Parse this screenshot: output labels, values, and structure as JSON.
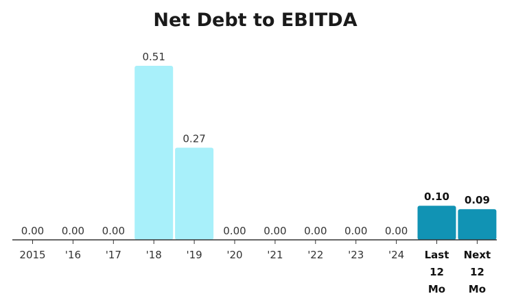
{
  "chart_data": {
    "type": "bar",
    "title": "Net Debt to EBITDA",
    "categories": [
      "2015",
      "'16",
      "'17",
      "'18",
      "'19",
      "'20",
      "'21",
      "'22",
      "'23",
      "'24",
      "Last 12 Mo",
      "Next 12 Mo"
    ],
    "category_lines": [
      [
        "2015"
      ],
      [
        "'16"
      ],
      [
        "'17"
      ],
      [
        "'18"
      ],
      [
        "'19"
      ],
      [
        "'20"
      ],
      [
        "'21"
      ],
      [
        "'22"
      ],
      [
        "'23"
      ],
      [
        "'24"
      ],
      [
        "Last",
        "12",
        "Mo"
      ],
      [
        "Next",
        "12",
        "Mo"
      ]
    ],
    "values": [
      0.0,
      0.0,
      0.0,
      0.51,
      0.27,
      0.0,
      0.0,
      0.0,
      0.0,
      0.0,
      0.1,
      0.09
    ],
    "value_labels": [
      "0.00",
      "0.00",
      "0.00",
      "0.51",
      "0.27",
      "0.00",
      "0.00",
      "0.00",
      "0.00",
      "0.00",
      "0.10",
      "0.09"
    ],
    "highlight": [
      false,
      false,
      false,
      false,
      false,
      false,
      false,
      false,
      false,
      false,
      true,
      true
    ],
    "colors": {
      "historical": "#a8f0fa",
      "forecast": "#1193b4",
      "axis": "#333333"
    },
    "ylim": [
      0,
      0.51
    ],
    "grid": false,
    "xlabel": "",
    "ylabel": ""
  }
}
